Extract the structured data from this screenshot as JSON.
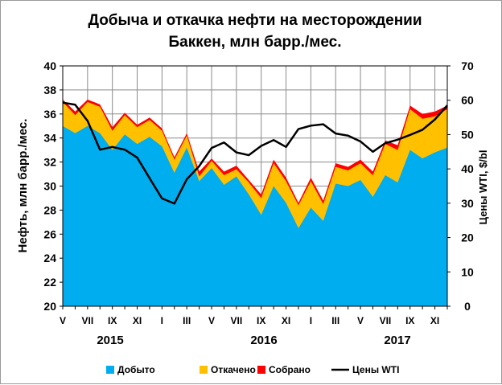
{
  "chart_data": {
    "type": "area",
    "title_line1": "Добыча и откачка нефти на месторождении",
    "title_line2": "Баккен, млн барр./мес.",
    "ylabel": "Нефть, млн барр./мес.",
    "y2label": "Цены WTI, $/bl",
    "ylim": [
      20,
      40
    ],
    "yticks": [
      20,
      22,
      24,
      26,
      28,
      30,
      32,
      34,
      36,
      38,
      40
    ],
    "y2lim": [
      0,
      70
    ],
    "y2ticks": [
      0,
      10,
      20,
      30,
      40,
      50,
      60,
      70
    ],
    "grid": true,
    "legend_position": "bottom",
    "x_tick_labels": [
      "V",
      "VII",
      "IX",
      "XI",
      "I",
      "III",
      "V",
      "VII",
      "IX",
      "XI",
      "I",
      "III",
      "V",
      "VII",
      "IX",
      "XI"
    ],
    "year_labels": [
      "2015",
      "2016",
      "2017"
    ],
    "months": [
      "2015-05",
      "2015-06",
      "2015-07",
      "2015-08",
      "2015-09",
      "2015-10",
      "2015-11",
      "2015-12",
      "2016-01",
      "2016-02",
      "2016-03",
      "2016-04",
      "2016-05",
      "2016-06",
      "2016-07",
      "2016-08",
      "2016-09",
      "2016-10",
      "2016-11",
      "2016-12",
      "2017-01",
      "2017-02",
      "2017-03",
      "2017-04",
      "2017-05",
      "2017-06",
      "2017-07",
      "2017-08",
      "2017-09",
      "2017-10",
      "2017-11",
      "2017-12"
    ],
    "series": [
      {
        "name": "Добыто",
        "color": "#00aeef",
        "values": [
          35.0,
          34.4,
          35.0,
          34.4,
          33.0,
          34.3,
          33.5,
          34.1,
          33.3,
          31.1,
          33.2,
          30.4,
          31.5,
          30.1,
          30.8,
          29.3,
          27.6,
          30.0,
          28.6,
          26.5,
          28.2,
          27.1,
          30.2,
          30.0,
          30.5,
          29.1,
          30.9,
          30.3,
          33.0,
          32.3,
          32.8,
          33.2
        ]
      },
      {
        "name": "Откачено",
        "color": "#ffc000",
        "values": [
          37.0,
          35.9,
          37.0,
          36.6,
          34.6,
          35.9,
          34.9,
          35.5,
          34.6,
          32.2,
          34.2,
          30.8,
          32.1,
          30.9,
          31.4,
          30.3,
          29.0,
          31.9,
          30.4,
          28.4,
          30.4,
          28.5,
          31.6,
          31.3,
          31.9,
          30.9,
          33.5,
          33.0,
          36.4,
          35.6,
          35.8,
          36.4
        ]
      },
      {
        "name": "Собрано",
        "color": "#ff0000",
        "values": [
          37.2,
          36.2,
          37.2,
          36.8,
          34.9,
          36.1,
          35.1,
          35.7,
          34.8,
          32.4,
          34.4,
          31.2,
          32.3,
          31.2,
          31.7,
          30.5,
          29.3,
          32.2,
          30.7,
          28.6,
          30.7,
          28.8,
          31.9,
          31.6,
          32.2,
          31.2,
          33.8,
          33.4,
          36.7,
          36.0,
          36.2,
          36.7
        ]
      },
      {
        "name": "Цены WTI",
        "color": "#000000",
        "axis": "right",
        "values": [
          59.3,
          58.7,
          54.0,
          45.6,
          46.4,
          45.6,
          43.3,
          37.3,
          31.4,
          29.9,
          37.0,
          40.8,
          46.1,
          47.7,
          44.8,
          44.0,
          46.7,
          48.4,
          46.4,
          51.6,
          52.6,
          53.0,
          50.3,
          49.7,
          48.0,
          45.0,
          47.5,
          48.5,
          49.9,
          51.4,
          54.4,
          58.5
        ]
      }
    ]
  }
}
